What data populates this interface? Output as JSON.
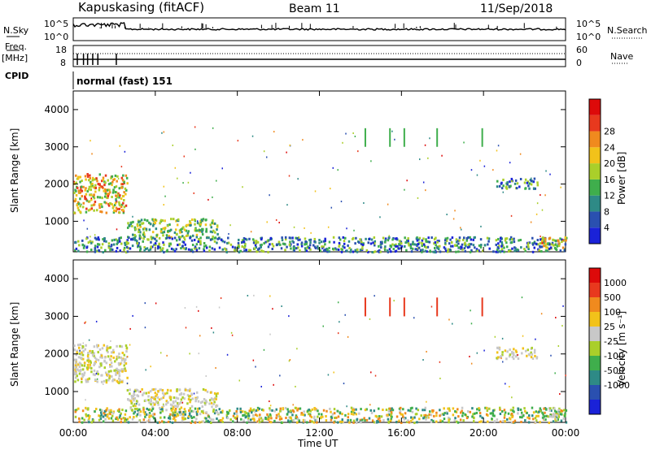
{
  "header": {
    "station": "Kapuskasing (fitACF)",
    "beam": "Beam 11",
    "date": "11/Sep/2018"
  },
  "side_labels": {
    "nsky": "N.Sky",
    "freq": "Freq.",
    "freq_unit": "[MHz]",
    "cpid": "CPID",
    "nsearch": "N.Search",
    "nave": "Nave",
    "nsky_top": "10^5",
    "nsky_bottom": "10^0",
    "freq_top": "18",
    "freq_bottom": "8",
    "nsearch_top": "10^5",
    "nsearch_bottom": "10^0",
    "nave_top": "60",
    "nave_bottom": "0",
    "cpid_text": "normal (fast) 151"
  },
  "chart_data": [
    {
      "type": "heatmap",
      "name": "power",
      "ylabel": "Slant Range [km]",
      "ylim": [
        180,
        4500
      ],
      "yticks": [
        "1000",
        "2000",
        "3000",
        "4000"
      ],
      "xlim": [
        0,
        24
      ],
      "colorbar_label": "Power [dB]",
      "colorbar_ticks": [
        "4",
        "8",
        "12",
        "16",
        "20",
        "24",
        "28"
      ],
      "colorbar_colors": [
        "#1a22d8",
        "#2a50b0",
        "#2e8a86",
        "#3fae4c",
        "#aacf2a",
        "#f2c21a",
        "#f08a1e",
        "#e8391e",
        "#dd0a0a"
      ],
      "features": [
        {
          "t0": 0.0,
          "t1": 2.6,
          "r0": 1250,
          "r1": 2300,
          "level": "high"
        },
        {
          "t0": 2.6,
          "t1": 7.0,
          "r0": 600,
          "r1": 1100,
          "level": "medium"
        },
        {
          "t0": 0.0,
          "t1": 24.0,
          "r0": 200,
          "r1": 600,
          "level": "low"
        },
        {
          "t0": 20.6,
          "t1": 22.6,
          "r0": 1900,
          "r1": 2200,
          "level": "low"
        },
        {
          "t0": 22.8,
          "t1": 24.0,
          "r0": 300,
          "r1": 600,
          "level": "high"
        }
      ]
    },
    {
      "type": "heatmap",
      "name": "velocity",
      "ylabel": "Slant Range [km]",
      "ylim": [
        180,
        4500
      ],
      "yticks": [
        "1000",
        "2000",
        "3000",
        "4000"
      ],
      "xlim": [
        0,
        24
      ],
      "xlabel": "Time UT",
      "xticks": [
        "00:00",
        "04:00",
        "08:00",
        "12:00",
        "16:00",
        "20:00",
        "00:00"
      ],
      "colorbar_label": "Velocity [m s⁻¹]",
      "colorbar_ticks": [
        "1000",
        "500",
        "100",
        "25",
        "-25",
        "-100",
        "-500",
        "-1000"
      ],
      "colorbar_colors": [
        "#1a22d8",
        "#2a50b0",
        "#2e8a86",
        "#3fae4c",
        "#aacf2a",
        "#c8c8c8",
        "#f2c21a",
        "#f08a1e",
        "#e8391e",
        "#dd0a0a"
      ],
      "features": [
        {
          "t0": 0.0,
          "t1": 2.6,
          "r0": 1250,
          "r1": 2300,
          "level": "neutral"
        },
        {
          "t0": 2.6,
          "t1": 7.0,
          "r0": 600,
          "r1": 1100,
          "level": "neutral"
        },
        {
          "t0": 0.0,
          "t1": 24.0,
          "r0": 200,
          "r1": 600,
          "level": "mixed"
        },
        {
          "t0": 20.6,
          "t1": 22.6,
          "r0": 1900,
          "r1": 2200,
          "level": "neutral"
        },
        {
          "t0": 22.8,
          "t1": 24.0,
          "r0": 300,
          "r1": 600,
          "level": "toward"
        }
      ]
    }
  ]
}
